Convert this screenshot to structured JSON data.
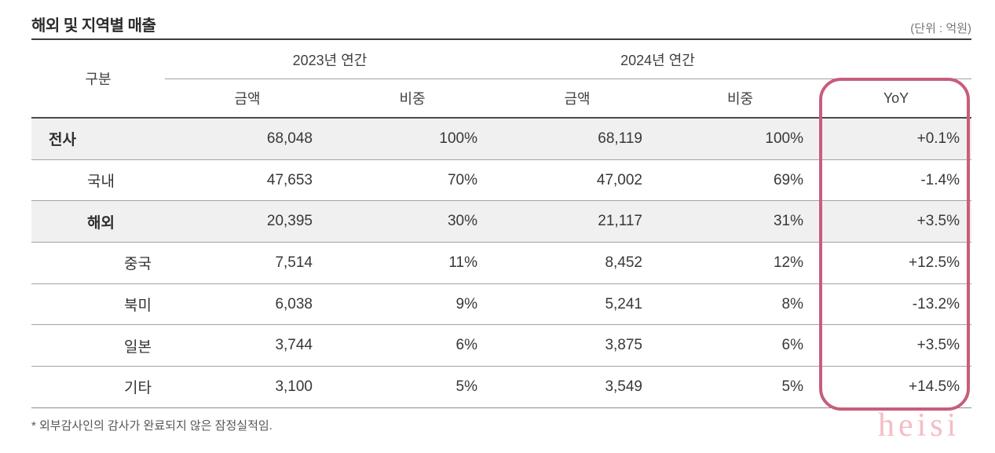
{
  "page": {
    "title": "해외 및 지역별 매출",
    "unit_note": "(단위 : 억원)",
    "footnote": "* 외부감사인의 감사가 완료되지 않은 잠정실적임.",
    "watermark": "heisi"
  },
  "table": {
    "gubun_header": "구분",
    "year_groups": [
      {
        "label": "2023년 연간",
        "sub_columns": [
          "금액",
          "비중"
        ]
      },
      {
        "label": "2024년 연간",
        "sub_columns": [
          "금액",
          "비중"
        ]
      }
    ],
    "yoy_header": "YoY",
    "highlight_color": "#c85d7b",
    "rows": [
      {
        "label": "전사",
        "amount_2023": "68,048",
        "share_2023": "100%",
        "amount_2024": "68,119",
        "share_2024": "100%",
        "yoy": "+0.1%"
      },
      {
        "label": "국내",
        "amount_2023": "47,653",
        "share_2023": "70%",
        "amount_2024": "47,002",
        "share_2024": "69%",
        "yoy": "-1.4%"
      },
      {
        "label": "해외",
        "amount_2023": "20,395",
        "share_2023": "30%",
        "amount_2024": "21,117",
        "share_2024": "31%",
        "yoy": "+3.5%"
      },
      {
        "label": "중국",
        "amount_2023": "7,514",
        "share_2023": "11%",
        "amount_2024": "8,452",
        "share_2024": "12%",
        "yoy": "+12.5%"
      },
      {
        "label": "북미",
        "amount_2023": "6,038",
        "share_2023": "9%",
        "amount_2024": "5,241",
        "share_2024": "8%",
        "yoy": "-13.2%"
      },
      {
        "label": "일본",
        "amount_2023": "3,744",
        "share_2023": "6%",
        "amount_2024": "3,875",
        "share_2024": "6%",
        "yoy": "+3.5%"
      },
      {
        "label": "기타",
        "amount_2023": "3,100",
        "share_2023": "5%",
        "amount_2024": "3,549",
        "share_2024": "5%",
        "yoy": "+14.5%"
      }
    ]
  },
  "chart_data": {
    "type": "table",
    "title": "해외 및 지역별 매출",
    "unit": "억원",
    "columns": [
      "구분",
      "2023년 연간 금액",
      "2023년 연간 비중",
      "2024년 연간 금액",
      "2024년 연간 비중",
      "YoY"
    ],
    "rows": [
      [
        "전사",
        68048,
        "100%",
        68119,
        "100%",
        "+0.1%"
      ],
      [
        "국내",
        47653,
        "70%",
        47002,
        "69%",
        "-1.4%"
      ],
      [
        "해외",
        20395,
        "30%",
        21117,
        "31%",
        "+3.5%"
      ],
      [
        "중국",
        7514,
        "11%",
        8452,
        "12%",
        "+12.5%"
      ],
      [
        "북미",
        6038,
        "9%",
        5241,
        "8%",
        "-13.2%"
      ],
      [
        "일본",
        3744,
        "6%",
        3875,
        "6%",
        "+3.5%"
      ],
      [
        "기타",
        3100,
        "5%",
        3549,
        "5%",
        "+14.5%"
      ]
    ]
  }
}
